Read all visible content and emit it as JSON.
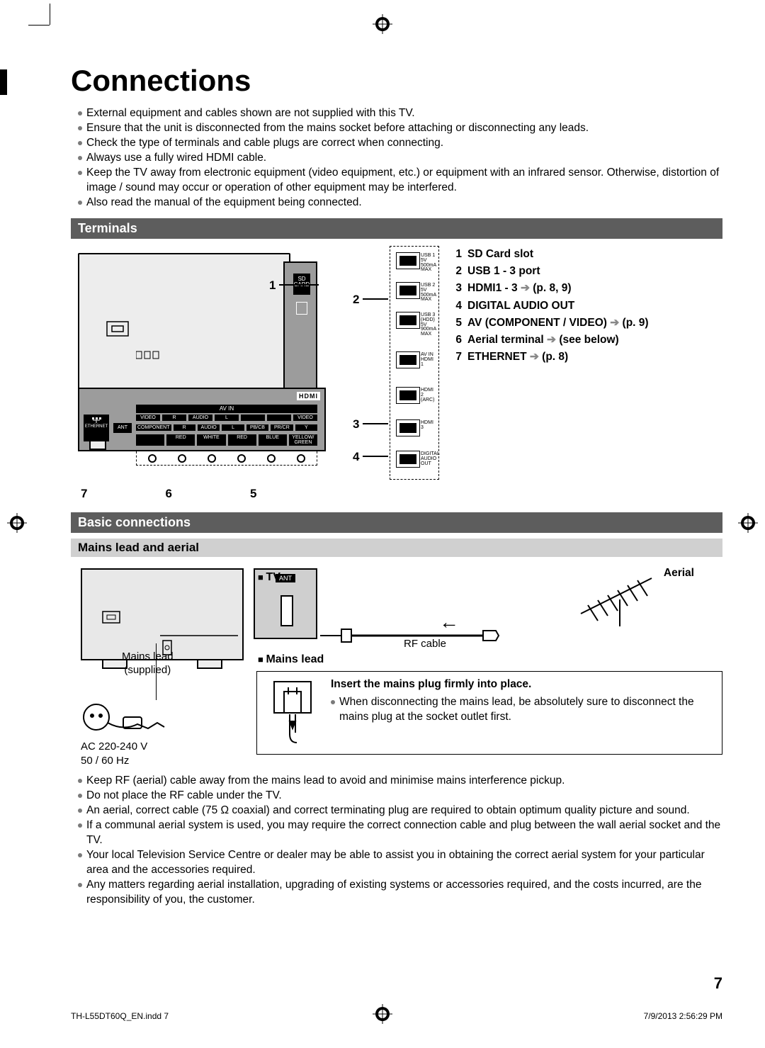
{
  "page": {
    "title": "Connections",
    "number": "7"
  },
  "intro_bullets": [
    "External equipment and cables shown are not supplied with this TV.",
    "Ensure that the unit is disconnected from the mains socket before attaching or disconnecting any leads.",
    "Check the type of terminals and cable plugs are correct when connecting.",
    "Always use a fully wired HDMI cable.",
    "Keep the TV away from electronic equipment (video equipment, etc.) or equipment with an infrared sensor. Otherwise, distortion of image / sound may occur or operation of other equipment may be interfered.",
    "Also read the manual of the equipment being connected."
  ],
  "sections": {
    "terminals": "Terminals",
    "basic": "Basic connections",
    "mains_sub": "Mains lead and aerial"
  },
  "terminals_list": [
    {
      "n": "1",
      "label": "SD Card slot",
      "ref": ""
    },
    {
      "n": "2",
      "label": "USB 1 - 3 port",
      "ref": ""
    },
    {
      "n": "3",
      "label": "HDMI1 - 3",
      "ref": "(p. 8, 9)"
    },
    {
      "n": "4",
      "label": "DIGITAL AUDIO OUT",
      "ref": ""
    },
    {
      "n": "5",
      "label": "AV (COMPONENT / VIDEO)",
      "ref": "(p. 9)"
    },
    {
      "n": "6",
      "label": "Aerial terminal",
      "ref": "(see below)"
    },
    {
      "n": "7",
      "label": "ETHERNET",
      "ref": "(p. 8)"
    }
  ],
  "diagram": {
    "callouts_right": [
      "1",
      "2",
      "3",
      "4"
    ],
    "callouts_bottom": [
      "7",
      "6",
      "5"
    ],
    "side_ports": [
      {
        "label": "USB 1\n5V\n500mA\nMAX"
      },
      {
        "label": "USB 2\n5V\n500mA\nMAX"
      },
      {
        "label": "USB 3\n(HDD)\n5V\n900mA\nMAX"
      },
      {
        "label": "AV IN\nHDMI\n1"
      },
      {
        "label": "HDMI\n2\n(ARC)"
      },
      {
        "label": "HDMI\n3"
      },
      {
        "label": "DIGITAL\nAUDIO\nOUT"
      }
    ],
    "sd_label": "SD\nCARD",
    "hdmi_logo": "HDMI",
    "avin": "AV IN",
    "row1": [
      "VIDEO",
      "R",
      "AUDIO",
      "L",
      "",
      "",
      "VIDEO"
    ],
    "row2": [
      "COMPONENT",
      "R",
      "AUDIO",
      "L",
      "PB/CB",
      "PR/CR",
      "Y"
    ],
    "row3": [
      "",
      "RED",
      "WHITE",
      "RED",
      "BLUE",
      "YELLOW/\nGREEN"
    ],
    "ethernet": "ETHERNET",
    "ant": "ANT"
  },
  "mains": {
    "tv_label": "TV",
    "ant_label": "ANT",
    "aerial_label": "Aerial",
    "rf_cable": "RF cable",
    "mains_supplied": "Mains lead\n(supplied)",
    "ac": "AC 220-240 V\n50 / 60 Hz",
    "mains_heading": "Mains lead",
    "box_title": "Insert the mains plug firmly into place.",
    "box_bullet": "When disconnecting the mains lead, be absolutely sure to disconnect the mains plug at the socket outlet first."
  },
  "bottom_bullets": [
    "Keep RF (aerial) cable away from the mains lead to avoid and minimise mains interference pickup.",
    "Do not place the RF cable under the TV.",
    "An aerial, correct cable (75 Ω coaxial) and correct terminating plug are required to obtain optimum quality picture and sound.",
    "If a communal aerial system is used, you may require the correct connection cable and plug between the wall aerial socket and the TV.",
    "Your local Television Service Centre or dealer may be able to assist you in obtaining the correct aerial system for your particular area and the accessories required.",
    "Any matters regarding aerial installation, upgrading of existing systems or accessories required, and the costs incurred, are the responsibility of you, the customer."
  ],
  "footer": {
    "file": "TH-L55DT60Q_EN.indd   7",
    "date": "7/9/2013   2:56:29 PM"
  },
  "colors": {
    "section_bar_bg": "#5d5d5d",
    "section_sub_bg": "#d0d0d0",
    "bullet": "#7a7a7a",
    "diagram_bg": "#ededed",
    "panel_bg": "#9c9c9c"
  }
}
